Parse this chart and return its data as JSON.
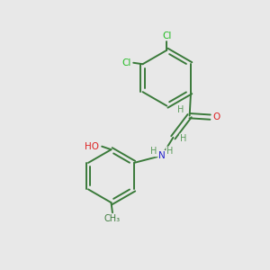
{
  "background_color": "#e8e8e8",
  "bond_color": "#3a7a3a",
  "atom_colors": {
    "Cl": "#22bb22",
    "O": "#dd2222",
    "N": "#2222cc",
    "H": "#5a9a5a",
    "C": "#3a7a3a"
  },
  "figsize": [
    3.0,
    3.0
  ],
  "dpi": 100
}
